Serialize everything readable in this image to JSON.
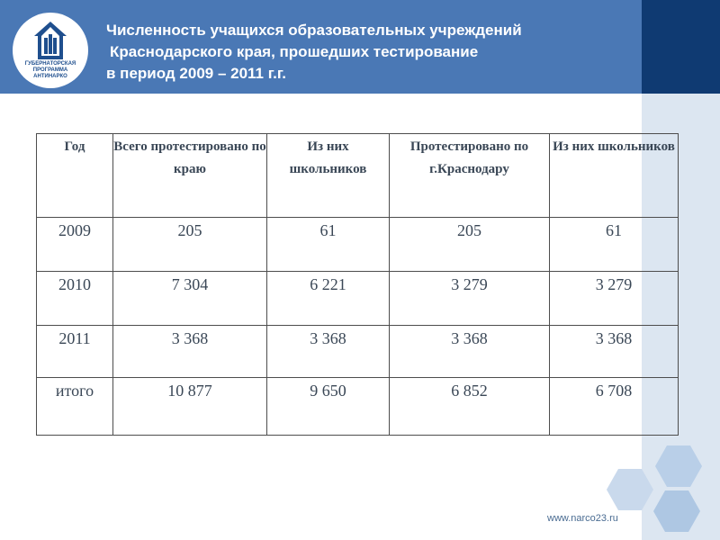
{
  "header": {
    "title_lines": [
      "Численность учащихся образовательных учреждений",
      "Краснодарского края, прошедших тестирование",
      "в период 2009 – 2011 г.г."
    ],
    "logo_text": [
      "ГУБЕРНАТОРСКАЯ",
      "ПРОГРАММА",
      "АНТИНАРКО"
    ]
  },
  "table": {
    "columns": [
      "Год",
      "Всего протестировано по краю",
      "Из них школьников",
      "Протестировано по г.Краснодару",
      "Из них школьников"
    ],
    "rows": [
      [
        "2009",
        "205",
        "61",
        "205",
        "61"
      ],
      [
        "2010",
        "7 304",
        "6 221",
        "3 279",
        "3 279"
      ],
      [
        "2011",
        "3 368",
        "3 368",
        "3 368",
        "3 368"
      ],
      [
        "итого",
        "10 877",
        "9 650",
        "6 852",
        "6 708"
      ]
    ]
  },
  "footer": {
    "url": "www.narco23.ru"
  },
  "colors": {
    "header_band": "#4a78b5",
    "header_dark": "#0f3a72",
    "side_strip": "#dce6f1",
    "hexagon": "#b9cfe8"
  }
}
